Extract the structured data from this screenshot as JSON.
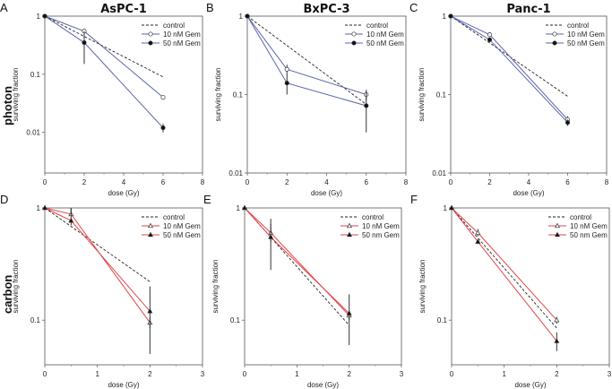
{
  "row_labels": [
    "photon",
    "carbon"
  ],
  "colors": {
    "photon": "#5a63aa",
    "carbon": "#e0464a",
    "control": "#222222",
    "errorbar": "#333333"
  },
  "chart_data": [
    {
      "type": "line",
      "panel": "A",
      "title": "AsPC-1",
      "row": "photon",
      "xlabel": "dose (Gy)",
      "ylabel": "surviving fraction",
      "yscale": "log",
      "xlim": [
        0,
        8
      ],
      "ylim": [
        0.002,
        1
      ],
      "xticks": [
        "0",
        "2",
        "4",
        "6",
        "8"
      ],
      "yticks": [
        "1",
        "0.1",
        "0.01"
      ],
      "series": [
        {
          "name": "control",
          "style": "dashed",
          "x": [
            0,
            6
          ],
          "y": [
            1,
            0.09
          ]
        },
        {
          "name": "10 nM Gem",
          "marker": "open-circle",
          "x": [
            0,
            2,
            6
          ],
          "y": [
            1,
            0.55,
            0.04
          ],
          "err_low": [
            1,
            0.5,
            0.037
          ],
          "err_high": [
            1,
            0.6,
            0.043
          ]
        },
        {
          "name": "50 nM Gem",
          "marker": "filled-circle",
          "x": [
            0,
            2,
            6
          ],
          "y": [
            1,
            0.35,
            0.012
          ],
          "err_low": [
            1,
            0.15,
            0.01
          ],
          "err_high": [
            1,
            0.55,
            0.014
          ]
        }
      ]
    },
    {
      "type": "line",
      "panel": "B",
      "title": "BxPC-3",
      "row": "photon",
      "xlabel": "dose (Gy)",
      "ylabel": "surviving fraction",
      "yscale": "log",
      "xlim": [
        0,
        8
      ],
      "ylim": [
        0.01,
        1
      ],
      "xticks": [
        "0",
        "2",
        "4",
        "6",
        "8"
      ],
      "yticks": [
        "1",
        "0.1",
        "0.01"
      ],
      "series": [
        {
          "name": "control",
          "style": "dashed",
          "x": [
            0,
            6
          ],
          "y": [
            1,
            0.075
          ]
        },
        {
          "name": "10 nM Gem",
          "marker": "open-circle",
          "x": [
            0,
            2,
            6
          ],
          "y": [
            1,
            0.21,
            0.1
          ],
          "err_low": [
            1,
            0.19,
            0.085
          ],
          "err_high": [
            1,
            0.24,
            0.115
          ]
        },
        {
          "name": "50 nM Gem",
          "marker": "filled-circle",
          "x": [
            0,
            2,
            6
          ],
          "y": [
            1,
            0.14,
            0.072
          ],
          "err_low": [
            1,
            0.1,
            0.033
          ],
          "err_high": [
            1,
            0.19,
            0.11
          ]
        }
      ]
    },
    {
      "type": "line",
      "panel": "C",
      "title": "Panc-1",
      "row": "photon",
      "xlabel": "dose (Gy)",
      "ylabel": "surviving fraction",
      "yscale": "log",
      "xlim": [
        0,
        8
      ],
      "ylim": [
        0.01,
        1
      ],
      "xticks": [
        "0",
        "2",
        "4",
        "6",
        "8"
      ],
      "yticks": [
        "1",
        "0.1",
        "0.01"
      ],
      "series": [
        {
          "name": "control",
          "style": "dashed",
          "x": [
            0,
            6
          ],
          "y": [
            1,
            0.095
          ]
        },
        {
          "name": "10 nM Gem",
          "marker": "open-circle",
          "x": [
            0,
            2,
            6
          ],
          "y": [
            1,
            0.58,
            0.048
          ],
          "err_low": [
            1,
            0.54,
            0.044
          ],
          "err_high": [
            1,
            0.62,
            0.053
          ]
        },
        {
          "name": "50 nM Gem",
          "marker": "filled-circle",
          "x": [
            0,
            2,
            6
          ],
          "y": [
            1,
            0.5,
            0.044
          ],
          "err_low": [
            1,
            0.47,
            0.04
          ],
          "err_high": [
            1,
            0.53,
            0.048
          ]
        }
      ]
    },
    {
      "type": "line",
      "panel": "D",
      "title": "",
      "row": "carbon",
      "xlabel": "dose (Gy)",
      "ylabel": "surviving fraction",
      "yscale": "log",
      "xlim": [
        0,
        3
      ],
      "ylim": [
        0.04,
        1
      ],
      "xticks": [
        "0",
        "1",
        "2",
        "3"
      ],
      "yticks": [
        "1",
        "0.1"
      ],
      "series": [
        {
          "name": "control",
          "style": "dashed",
          "x": [
            0,
            2
          ],
          "y": [
            1,
            0.22
          ]
        },
        {
          "name": "10 nM Gem",
          "marker": "open-triangle",
          "x": [
            0,
            0.5,
            2
          ],
          "y": [
            1,
            0.88,
            0.095
          ],
          "err_low": [
            1,
            0.85,
            0.085
          ],
          "err_high": [
            1,
            1,
            0.105
          ]
        },
        {
          "name": "50 nM Gem",
          "marker": "filled-triangle",
          "x": [
            0,
            0.5,
            2
          ],
          "y": [
            1,
            0.77,
            0.12
          ],
          "err_low": [
            1,
            0.7,
            0.05
          ],
          "err_high": [
            1,
            1,
            0.2
          ]
        }
      ]
    },
    {
      "type": "line",
      "panel": "E",
      "title": "",
      "row": "carbon",
      "xlabel": "dose (Gy)",
      "ylabel": "surviving fraction",
      "yscale": "log",
      "xlim": [
        0,
        3
      ],
      "ylim": [
        0.04,
        1
      ],
      "xticks": [
        "0",
        "1",
        "2",
        "3"
      ],
      "yticks": [
        "1",
        "0.1"
      ],
      "series": [
        {
          "name": "control",
          "style": "dashed",
          "x": [
            0,
            2
          ],
          "y": [
            1,
            0.09
          ]
        },
        {
          "name": "10 nM Gem",
          "marker": "open-triangle",
          "x": [
            0,
            0.5,
            2
          ],
          "y": [
            1,
            0.6,
            0.11
          ],
          "err_low": [
            1,
            0.5,
            0.1
          ],
          "err_high": [
            1,
            0.72,
            0.12
          ]
        },
        {
          "name": "50 nm Gem",
          "marker": "filled-triangle",
          "x": [
            0,
            0.5,
            2
          ],
          "y": [
            1,
            0.55,
            0.115
          ],
          "err_low": [
            1,
            0.28,
            0.06
          ],
          "err_high": [
            1,
            0.8,
            0.17
          ]
        }
      ]
    },
    {
      "type": "line",
      "panel": "F",
      "title": "",
      "row": "carbon",
      "xlabel": "dose (Gy)",
      "ylabel": "surviving fraction",
      "yscale": "log",
      "xlim": [
        0,
        3
      ],
      "ylim": [
        0.04,
        1
      ],
      "xticks": [
        "0",
        "1",
        "2",
        "3"
      ],
      "yticks": [
        "1",
        "0.1"
      ],
      "series": [
        {
          "name": "control",
          "style": "dashed",
          "x": [
            0,
            2
          ],
          "y": [
            1,
            0.085
          ]
        },
        {
          "name": "10 nM Gem",
          "marker": "open-triangle",
          "x": [
            0,
            0.5,
            2
          ],
          "y": [
            1,
            0.6,
            0.1
          ],
          "err_low": [
            1,
            0.56,
            0.093
          ],
          "err_high": [
            1,
            0.65,
            0.107
          ]
        },
        {
          "name": "50 nm Gem",
          "marker": "filled-triangle",
          "x": [
            0,
            0.5,
            2
          ],
          "y": [
            1,
            0.5,
            0.065
          ],
          "err_low": [
            1,
            0.48,
            0.053
          ],
          "err_high": [
            1,
            0.52,
            0.078
          ]
        }
      ]
    }
  ]
}
